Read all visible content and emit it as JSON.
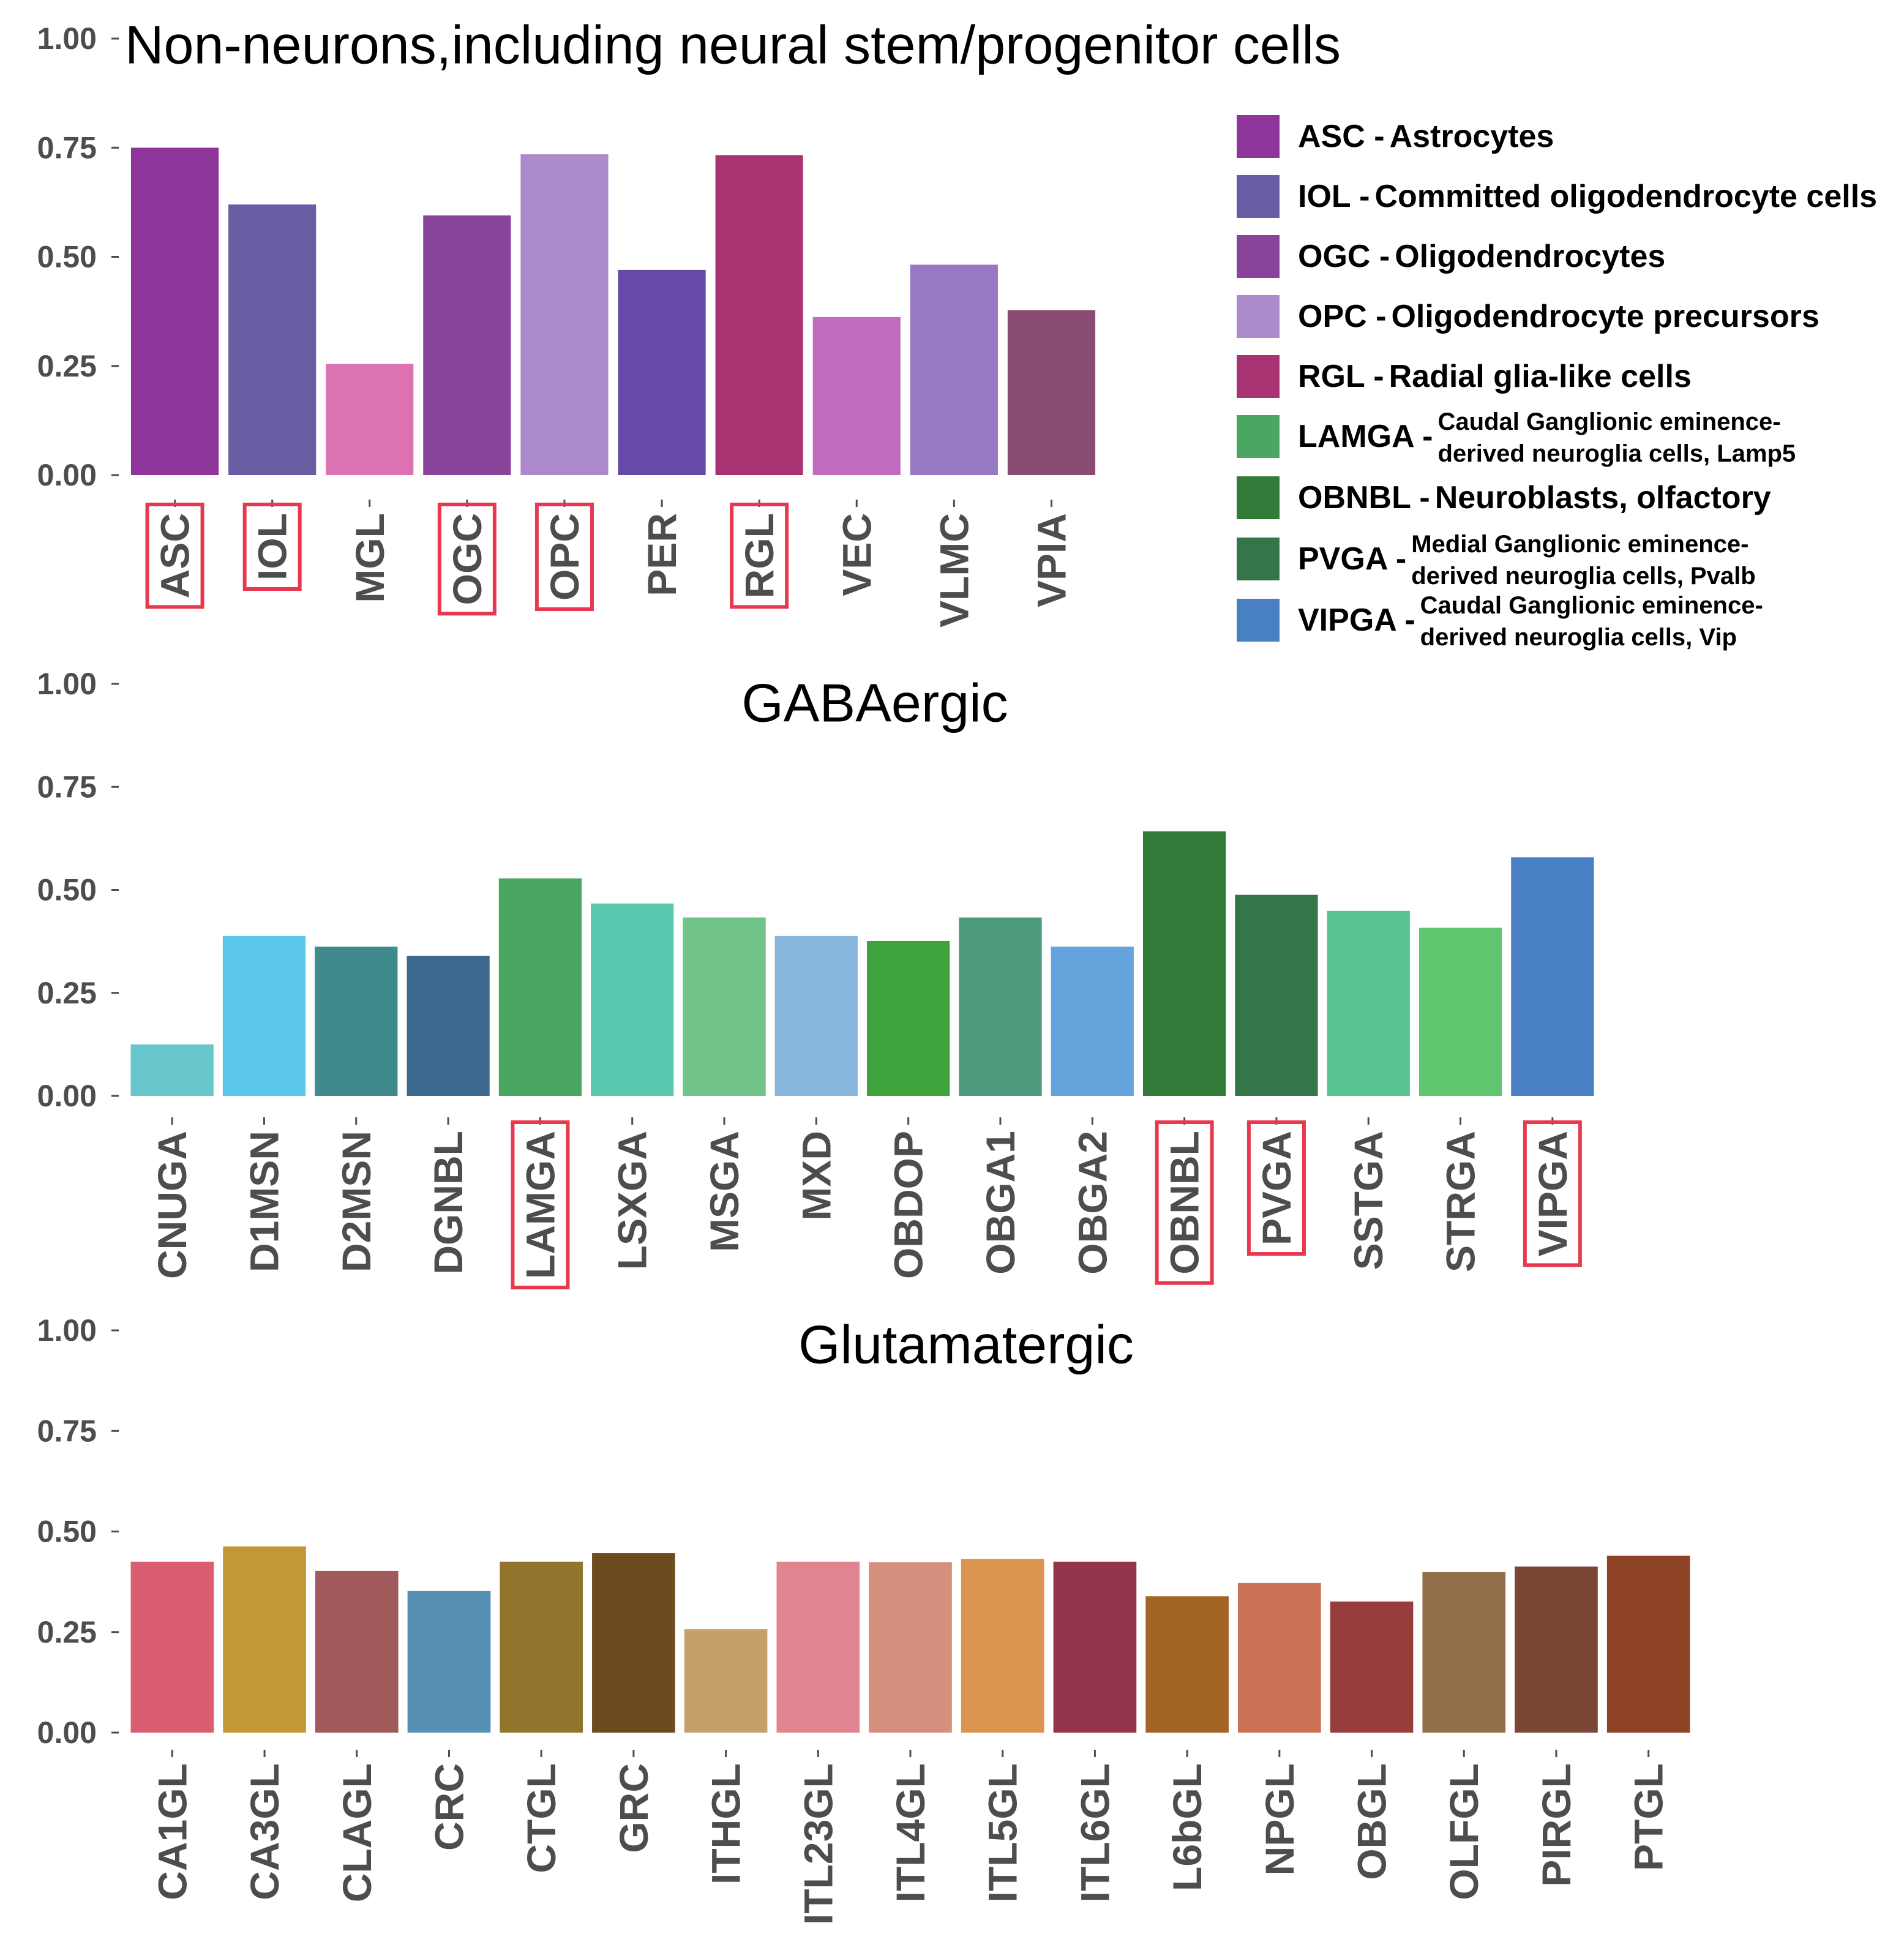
{
  "chart_data": [
    {
      "type": "bar",
      "title": "Non-neurons,including neural stem/progenitor cells",
      "xlabel": "",
      "ylabel": "",
      "ylim": [
        0,
        1
      ],
      "yticks": [
        "0.00",
        "0.25",
        "0.50",
        "0.75",
        "1.00"
      ],
      "categories": [
        "ASC",
        "IOL",
        "MGL",
        "OGC",
        "OPC",
        "PER",
        "RGL",
        "VEC",
        "VLMC",
        "VPIA"
      ],
      "values": [
        0.75,
        0.62,
        0.255,
        0.595,
        0.735,
        0.47,
        0.733,
        0.362,
        0.482,
        0.378
      ],
      "colors": [
        "#8E3599",
        "#695DA3",
        "#DD72B2",
        "#88449A",
        "#AD8BCA",
        "#6749A8",
        "#A73373",
        "#C06BBE",
        "#9779C3",
        "#8A4B72"
      ],
      "highlighted": [
        "ASC",
        "IOL",
        "OGC",
        "OPC",
        "RGL"
      ],
      "grid": false
    },
    {
      "type": "bar",
      "title": "GABAergic",
      "xlabel": "",
      "ylabel": "",
      "ylim": [
        0,
        1
      ],
      "yticks": [
        "0.00",
        "0.25",
        "0.50",
        "0.75",
        "1.00"
      ],
      "categories": [
        "CNUGA",
        "D1MSN",
        "D2MSN",
        "DGNBL",
        "LAMGA",
        "LSXGA",
        "MSGA",
        "MXD",
        "OBDOP",
        "OBGA1",
        "OBGA2",
        "OBNBL",
        "PVGA",
        "SSTGA",
        "STRGA",
        "VIPGA"
      ],
      "values": [
        0.125,
        0.388,
        0.362,
        0.34,
        0.528,
        0.467,
        0.433,
        0.388,
        0.376,
        0.433,
        0.362,
        0.642,
        0.488,
        0.449,
        0.408,
        0.579
      ],
      "colors": [
        "#66C6CB",
        "#5BC7E8",
        "#3E8A8C",
        "#3D698E",
        "#49A762",
        "#59C9B0",
        "#70C48A",
        "#88B5DB",
        "#3FA33D",
        "#4A9A7B",
        "#64A4DC",
        "#317A37",
        "#35754A",
        "#56C391",
        "#5FC66F",
        "#4980C3"
      ],
      "highlighted": [
        "LAMGA",
        "OBNBL",
        "PVGA",
        "VIPGA"
      ],
      "grid": false
    },
    {
      "type": "bar",
      "title": "Glutamatergic",
      "xlabel": "",
      "ylabel": "",
      "ylim": [
        0,
        1
      ],
      "yticks": [
        "0.00",
        "0.25",
        "0.50",
        "0.75",
        "1.00"
      ],
      "categories": [
        "CA1GL",
        "CA3GL",
        "CLAGL",
        "CRC",
        "CTGL",
        "GRC",
        "ITHGL",
        "ITL23GL",
        "ITL4GL",
        "ITL5GL",
        "ITL6GL",
        "L6bGL",
        "NPGL",
        "OBGL",
        "OLFGL",
        "PIRGL",
        "PTGL"
      ],
      "values": [
        0.425,
        0.463,
        0.402,
        0.352,
        0.425,
        0.446,
        0.257,
        0.425,
        0.424,
        0.432,
        0.425,
        0.339,
        0.372,
        0.326,
        0.399,
        0.413,
        0.44
      ],
      "colors": [
        "#D95E72",
        "#C39834",
        "#A15A5C",
        "#5690B4",
        "#92752C",
        "#6C4B1F",
        "#C4A16B",
        "#E08490",
        "#D68F7D",
        "#DB954F",
        "#94344B",
        "#A36526",
        "#CB7256",
        "#983D3C",
        "#917049",
        "#7A4636",
        "#8F4326"
      ],
      "highlighted": [],
      "grid": false
    }
  ],
  "legend": {
    "items": [
      {
        "code": "ASC",
        "sep": " - ",
        "desc": [
          "Astrocytes"
        ],
        "color": "#8E3599"
      },
      {
        "code": "IOL",
        "sep": " - ",
        "desc": [
          "Committed oligodendrocyte cells"
        ],
        "color": "#695DA3"
      },
      {
        "code": "OGC",
        "sep": " - ",
        "desc": [
          "Oligodendrocytes"
        ],
        "color": "#88449A"
      },
      {
        "code": "OPC",
        "sep": " - ",
        "desc": [
          "Oligodendrocyte precursors"
        ],
        "color": "#AD8BCA"
      },
      {
        "code": "RGL",
        "sep": " - ",
        "desc": [
          "Radial glia-like cells"
        ],
        "color": "#A73373"
      },
      {
        "code": "LAMGA",
        "sep": " -",
        "desc": [
          "Caudal Ganglionic eminence-",
          "derived neuroglia cells, Lamp5"
        ],
        "color": "#49A762"
      },
      {
        "code": "OBNBL",
        "sep": " - ",
        "desc": [
          "Neuroblasts, olfactory"
        ],
        "color": "#317A37"
      },
      {
        "code": "PVGA",
        "sep": " -",
        "desc": [
          "Medial Ganglionic eminence-",
          "derived neuroglia cells, Pvalb"
        ],
        "color": "#35754A"
      },
      {
        "code": "VIPGA",
        "sep": " -",
        "desc": [
          "Caudal Ganglionic eminence-",
          "derived neuroglia cells, Vip"
        ],
        "color": "#4980C3"
      }
    ]
  },
  "colors": {
    "highlight_box": "#E8384F",
    "tick_text": "#4d4d4d",
    "title_text": "#000000"
  }
}
